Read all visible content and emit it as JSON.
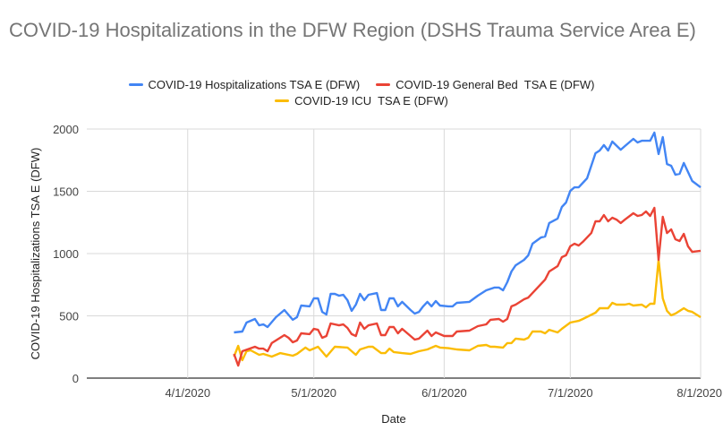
{
  "chart_data": {
    "type": "line",
    "title": "COVID-19 Hospitalizations in the DFW Region (DSHS Trauma Service Area E)",
    "xlabel": "Date",
    "ylabel": "COVID-19 Hospitalizations TSA E (DFW)",
    "xlim": [
      "3/8/2020",
      "8/1/2020"
    ],
    "ylim": [
      0,
      2000
    ],
    "x_ticks": [
      "4/1/2020",
      "5/1/2020",
      "6/1/2020",
      "7/1/2020",
      "8/1/2020"
    ],
    "y_ticks": [
      0,
      500,
      1000,
      1500,
      2000
    ],
    "grid": true,
    "legend_position": "top",
    "series": [
      {
        "name": "COVID-19 Hospitalizations TSA E (DFW)",
        "color": "#4285f4",
        "points": [
          [
            "4/12/2020",
            367
          ],
          [
            "4/14/2020",
            374
          ],
          [
            "4/15/2020",
            446
          ],
          [
            "4/17/2020",
            475
          ],
          [
            "4/18/2020",
            424
          ],
          [
            "4/19/2020",
            432
          ],
          [
            "4/20/2020",
            410
          ],
          [
            "4/22/2020",
            489
          ],
          [
            "4/24/2020",
            547
          ],
          [
            "4/26/2020",
            468
          ],
          [
            "4/27/2020",
            489
          ],
          [
            "4/28/2020",
            583
          ],
          [
            "4/30/2020",
            576
          ],
          [
            "5/1/2020",
            640
          ],
          [
            "5/2/2020",
            640
          ],
          [
            "5/3/2020",
            532
          ],
          [
            "5/4/2020",
            511
          ],
          [
            "5/5/2020",
            676
          ],
          [
            "5/6/2020",
            676
          ],
          [
            "5/7/2020",
            662
          ],
          [
            "5/8/2020",
            669
          ],
          [
            "5/9/2020",
            626
          ],
          [
            "5/10/2020",
            540
          ],
          [
            "5/11/2020",
            590
          ],
          [
            "5/12/2020",
            676
          ],
          [
            "5/13/2020",
            626
          ],
          [
            "5/14/2020",
            669
          ],
          [
            "5/16/2020",
            683
          ],
          [
            "5/17/2020",
            547
          ],
          [
            "5/18/2020",
            547
          ],
          [
            "5/19/2020",
            640
          ],
          [
            "5/20/2020",
            640
          ],
          [
            "5/21/2020",
            576
          ],
          [
            "5/22/2020",
            612
          ],
          [
            "5/24/2020",
            547
          ],
          [
            "5/25/2020",
            518
          ],
          [
            "5/26/2020",
            532
          ],
          [
            "5/27/2020",
            576
          ],
          [
            "5/28/2020",
            612
          ],
          [
            "5/29/2020",
            576
          ],
          [
            "5/30/2020",
            619
          ],
          [
            "5/31/2020",
            583
          ],
          [
            "6/2/2020",
            576
          ],
          [
            "6/3/2020",
            576
          ],
          [
            "6/4/2020",
            604
          ],
          [
            "6/7/2020",
            612
          ],
          [
            "6/9/2020",
            662
          ],
          [
            "6/11/2020",
            705
          ],
          [
            "6/13/2020",
            727
          ],
          [
            "6/14/2020",
            727
          ],
          [
            "6/15/2020",
            705
          ],
          [
            "6/16/2020",
            770
          ],
          [
            "6/17/2020",
            856
          ],
          [
            "6/18/2020",
            906
          ],
          [
            "6/20/2020",
            950
          ],
          [
            "6/21/2020",
            986
          ],
          [
            "6/22/2020",
            1079
          ],
          [
            "6/24/2020",
            1129
          ],
          [
            "6/25/2020",
            1137
          ],
          [
            "6/26/2020",
            1245
          ],
          [
            "6/28/2020",
            1281
          ],
          [
            "6/29/2020",
            1374
          ],
          [
            "6/30/2020",
            1410
          ],
          [
            "7/1/2020",
            1503
          ],
          [
            "7/2/2020",
            1532
          ],
          [
            "7/3/2020",
            1532
          ],
          [
            "7/5/2020",
            1604
          ],
          [
            "7/7/2020",
            1806
          ],
          [
            "7/8/2020",
            1827
          ],
          [
            "7/9/2020",
            1871
          ],
          [
            "7/10/2020",
            1827
          ],
          [
            "7/11/2020",
            1899
          ],
          [
            "7/13/2020",
            1834
          ],
          [
            "7/14/2020",
            1863
          ],
          [
            "7/16/2020",
            1921
          ],
          [
            "7/17/2020",
            1892
          ],
          [
            "7/18/2020",
            1906
          ],
          [
            "7/20/2020",
            1906
          ],
          [
            "7/21/2020",
            1971
          ],
          [
            "7/22/2020",
            1799
          ],
          [
            "7/23/2020",
            1935
          ],
          [
            "7/24/2020",
            1719
          ],
          [
            "7/25/2020",
            1705
          ],
          [
            "7/26/2020",
            1633
          ],
          [
            "7/27/2020",
            1640
          ],
          [
            "7/28/2020",
            1727
          ],
          [
            "7/30/2020",
            1583
          ],
          [
            "8/1/2020",
            1532
          ]
        ]
      },
      {
        "name": "COVID-19 General Bed  TSA E (DFW)",
        "color": "#ea4335",
        "points": [
          [
            "4/12/2020",
            194
          ],
          [
            "4/13/2020",
            101
          ],
          [
            "4/14/2020",
            216
          ],
          [
            "4/17/2020",
            252
          ],
          [
            "4/18/2020",
            237
          ],
          [
            "4/19/2020",
            237
          ],
          [
            "4/20/2020",
            216
          ],
          [
            "4/21/2020",
            281
          ],
          [
            "4/24/2020",
            345
          ],
          [
            "4/25/2020",
            324
          ],
          [
            "4/26/2020",
            288
          ],
          [
            "4/27/2020",
            302
          ],
          [
            "4/28/2020",
            360
          ],
          [
            "4/30/2020",
            353
          ],
          [
            "5/1/2020",
            396
          ],
          [
            "5/2/2020",
            388
          ],
          [
            "5/3/2020",
            324
          ],
          [
            "5/4/2020",
            338
          ],
          [
            "5/5/2020",
            439
          ],
          [
            "5/7/2020",
            424
          ],
          [
            "5/8/2020",
            432
          ],
          [
            "5/9/2020",
            403
          ],
          [
            "5/10/2020",
            353
          ],
          [
            "5/11/2020",
            338
          ],
          [
            "5/12/2020",
            446
          ],
          [
            "5/13/2020",
            396
          ],
          [
            "5/14/2020",
            424
          ],
          [
            "5/16/2020",
            439
          ],
          [
            "5/17/2020",
            345
          ],
          [
            "5/18/2020",
            345
          ],
          [
            "5/19/2020",
            410
          ],
          [
            "5/20/2020",
            410
          ],
          [
            "5/21/2020",
            360
          ],
          [
            "5/22/2020",
            396
          ],
          [
            "5/25/2020",
            309
          ],
          [
            "5/26/2020",
            317
          ],
          [
            "5/28/2020",
            381
          ],
          [
            "5/29/2020",
            338
          ],
          [
            "5/30/2020",
            367
          ],
          [
            "6/1/2020",
            338
          ],
          [
            "6/2/2020",
            338
          ],
          [
            "6/3/2020",
            338
          ],
          [
            "6/4/2020",
            374
          ],
          [
            "6/7/2020",
            381
          ],
          [
            "6/9/2020",
            417
          ],
          [
            "6/11/2020",
            432
          ],
          [
            "6/12/2020",
            468
          ],
          [
            "6/14/2020",
            475
          ],
          [
            "6/15/2020",
            453
          ],
          [
            "6/16/2020",
            475
          ],
          [
            "6/17/2020",
            576
          ],
          [
            "6/18/2020",
            590
          ],
          [
            "6/20/2020",
            633
          ],
          [
            "6/21/2020",
            647
          ],
          [
            "6/22/2020",
            683
          ],
          [
            "6/24/2020",
            755
          ],
          [
            "6/25/2020",
            791
          ],
          [
            "6/26/2020",
            856
          ],
          [
            "6/28/2020",
            899
          ],
          [
            "6/29/2020",
            971
          ],
          [
            "6/30/2020",
            986
          ],
          [
            "7/1/2020",
            1058
          ],
          [
            "7/2/2020",
            1079
          ],
          [
            "7/3/2020",
            1065
          ],
          [
            "7/4/2020",
            1094
          ],
          [
            "7/6/2020",
            1165
          ],
          [
            "7/7/2020",
            1259
          ],
          [
            "7/8/2020",
            1259
          ],
          [
            "7/9/2020",
            1309
          ],
          [
            "7/10/2020",
            1259
          ],
          [
            "7/11/2020",
            1288
          ],
          [
            "7/12/2020",
            1273
          ],
          [
            "7/13/2020",
            1245
          ],
          [
            "7/14/2020",
            1273
          ],
          [
            "7/16/2020",
            1324
          ],
          [
            "7/17/2020",
            1302
          ],
          [
            "7/18/2020",
            1309
          ],
          [
            "7/19/2020",
            1338
          ],
          [
            "7/20/2020",
            1302
          ],
          [
            "7/21/2020",
            1367
          ],
          [
            "7/22/2020",
            950
          ],
          [
            "7/23/2020",
            1295
          ],
          [
            "7/24/2020",
            1165
          ],
          [
            "7/25/2020",
            1194
          ],
          [
            "7/26/2020",
            1115
          ],
          [
            "7/27/2020",
            1101
          ],
          [
            "7/28/2020",
            1158
          ],
          [
            "7/29/2020",
            1058
          ],
          [
            "7/30/2020",
            1014
          ],
          [
            "8/1/2020",
            1022
          ]
        ]
      },
      {
        "name": "COVID-19 ICU  TSA E (DFW)",
        "color": "#fbbc04",
        "points": [
          [
            "4/12/2020",
            173
          ],
          [
            "4/13/2020",
            259
          ],
          [
            "4/14/2020",
            144
          ],
          [
            "4/15/2020",
            216
          ],
          [
            "4/16/2020",
            223
          ],
          [
            "4/18/2020",
            187
          ],
          [
            "4/19/2020",
            194
          ],
          [
            "4/21/2020",
            173
          ],
          [
            "4/23/2020",
            201
          ],
          [
            "4/26/2020",
            180
          ],
          [
            "4/27/2020",
            194
          ],
          [
            "4/29/2020",
            245
          ],
          [
            "4/30/2020",
            223
          ],
          [
            "5/2/2020",
            252
          ],
          [
            "5/4/2020",
            173
          ],
          [
            "5/6/2020",
            252
          ],
          [
            "5/9/2020",
            245
          ],
          [
            "5/11/2020",
            187
          ],
          [
            "5/12/2020",
            230
          ],
          [
            "5/14/2020",
            252
          ],
          [
            "5/15/2020",
            252
          ],
          [
            "5/17/2020",
            201
          ],
          [
            "5/18/2020",
            201
          ],
          [
            "5/19/2020",
            237
          ],
          [
            "5/20/2020",
            209
          ],
          [
            "5/22/2020",
            201
          ],
          [
            "5/24/2020",
            194
          ],
          [
            "5/26/2020",
            216
          ],
          [
            "5/28/2020",
            230
          ],
          [
            "5/30/2020",
            259
          ],
          [
            "5/31/2020",
            245
          ],
          [
            "6/2/2020",
            240
          ],
          [
            "6/4/2020",
            230
          ],
          [
            "6/7/2020",
            223
          ],
          [
            "6/9/2020",
            259
          ],
          [
            "6/11/2020",
            266
          ],
          [
            "6/12/2020",
            252
          ],
          [
            "6/13/2020",
            252
          ],
          [
            "6/15/2020",
            245
          ],
          [
            "6/16/2020",
            281
          ],
          [
            "6/17/2020",
            281
          ],
          [
            "6/18/2020",
            317
          ],
          [
            "6/20/2020",
            309
          ],
          [
            "6/21/2020",
            324
          ],
          [
            "6/22/2020",
            374
          ],
          [
            "6/24/2020",
            374
          ],
          [
            "6/25/2020",
            360
          ],
          [
            "6/26/2020",
            388
          ],
          [
            "6/28/2020",
            367
          ],
          [
            "6/29/2020",
            396
          ],
          [
            "7/1/2020",
            446
          ],
          [
            "7/3/2020",
            460
          ],
          [
            "7/4/2020",
            475
          ],
          [
            "7/7/2020",
            525
          ],
          [
            "7/8/2020",
            561
          ],
          [
            "7/10/2020",
            561
          ],
          [
            "7/11/2020",
            604
          ],
          [
            "7/12/2020",
            590
          ],
          [
            "7/14/2020",
            590
          ],
          [
            "7/15/2020",
            597
          ],
          [
            "7/16/2020",
            583
          ],
          [
            "7/18/2020",
            590
          ],
          [
            "7/19/2020",
            568
          ],
          [
            "7/20/2020",
            597
          ],
          [
            "7/21/2020",
            597
          ],
          [
            "7/22/2020",
            950
          ],
          [
            "7/23/2020",
            640
          ],
          [
            "7/24/2020",
            540
          ],
          [
            "7/25/2020",
            504
          ],
          [
            "7/26/2020",
            518
          ],
          [
            "7/28/2020",
            561
          ],
          [
            "7/29/2020",
            540
          ],
          [
            "7/30/2020",
            532
          ],
          [
            "8/1/2020",
            489
          ]
        ]
      }
    ]
  }
}
